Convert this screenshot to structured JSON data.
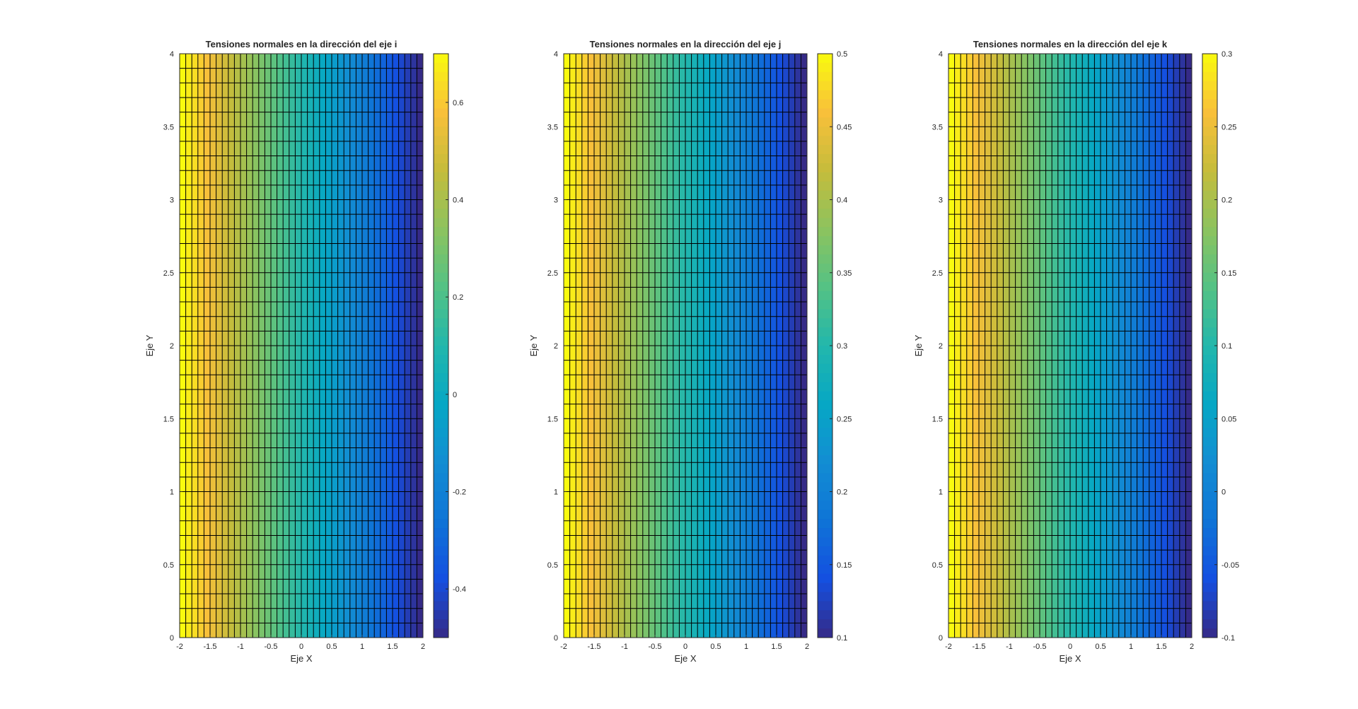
{
  "chart_data": [
    {
      "type": "heatmap",
      "title": "Tensiones normales en la dirección del eje i",
      "xlabel": "Eje X",
      "ylabel": "Eje Y",
      "xlim": [
        -2,
        2
      ],
      "ylim": [
        0,
        4
      ],
      "x_ticks": [
        -2,
        -1.5,
        -1,
        -0.5,
        0,
        0.5,
        1,
        1.5,
        2
      ],
      "x_tick_labels": [
        "-2",
        "-1.5",
        "-1",
        "-0.5",
        "0",
        "0.5",
        "1",
        "1.5",
        "2"
      ],
      "y_ticks": [
        0,
        0.5,
        1,
        1.5,
        2,
        2.5,
        3,
        3.5,
        4
      ],
      "y_tick_labels": [
        "0",
        "0.5",
        "1",
        "1.5",
        "2",
        "2.5",
        "3",
        "3.5",
        "4"
      ],
      "mesh_x_divisions": 40,
      "mesh_y_divisions": 40,
      "value_left": 0.7,
      "value_right": -0.5,
      "clim": [
        -0.5,
        0.7
      ],
      "colorbar_ticks": [
        -0.4,
        -0.2,
        0,
        0.2,
        0.4,
        0.6
      ],
      "colorbar_tick_labels": [
        "-0.4",
        "-0.2",
        "0",
        "0.2",
        "0.4",
        "0.6"
      ],
      "colormap": "parula",
      "edge_color": "#000000"
    },
    {
      "type": "heatmap",
      "title": "Tensiones normales en la dirección del eje j",
      "xlabel": "Eje X",
      "ylabel": "Eje Y",
      "xlim": [
        -2,
        2
      ],
      "ylim": [
        0,
        4
      ],
      "x_ticks": [
        -2,
        -1.5,
        -1,
        -0.5,
        0,
        0.5,
        1,
        1.5,
        2
      ],
      "x_tick_labels": [
        "-2",
        "-1.5",
        "-1",
        "-0.5",
        "0",
        "0.5",
        "1",
        "1.5",
        "2"
      ],
      "y_ticks": [
        0,
        0.5,
        1,
        1.5,
        2,
        2.5,
        3,
        3.5,
        4
      ],
      "y_tick_labels": [
        "0",
        "0.5",
        "1",
        "1.5",
        "2",
        "2.5",
        "3",
        "3.5",
        "4"
      ],
      "mesh_x_divisions": 40,
      "mesh_y_divisions": 40,
      "value_left": 0.5,
      "value_right": 0.1,
      "clim": [
        0.1,
        0.5
      ],
      "colorbar_ticks": [
        0.1,
        0.15,
        0.2,
        0.25,
        0.3,
        0.35,
        0.4,
        0.45,
        0.5
      ],
      "colorbar_tick_labels": [
        "0.1",
        "0.15",
        "0.2",
        "0.25",
        "0.3",
        "0.35",
        "0.4",
        "0.45",
        "0.5"
      ],
      "colormap": "parula",
      "edge_color": "#000000"
    },
    {
      "type": "heatmap",
      "title": "Tensiones normales en la dirección del eje k",
      "xlabel": "Eje X",
      "ylabel": "Eje Y",
      "xlim": [
        -2,
        2
      ],
      "ylim": [
        0,
        4
      ],
      "x_ticks": [
        -2,
        -1.5,
        -1,
        -0.5,
        0,
        0.5,
        1,
        1.5,
        2
      ],
      "x_tick_labels": [
        "-2",
        "-1.5",
        "-1",
        "-0.5",
        "0",
        "0.5",
        "1",
        "1.5",
        "2"
      ],
      "y_ticks": [
        0,
        0.5,
        1,
        1.5,
        2,
        2.5,
        3,
        3.5,
        4
      ],
      "y_tick_labels": [
        "0",
        "0.5",
        "1",
        "1.5",
        "2",
        "2.5",
        "3",
        "3.5",
        "4"
      ],
      "mesh_x_divisions": 40,
      "mesh_y_divisions": 40,
      "value_left": 0.3,
      "value_right": -0.1,
      "clim": [
        -0.1,
        0.3
      ],
      "colorbar_ticks": [
        -0.1,
        -0.05,
        0,
        0.05,
        0.1,
        0.15,
        0.2,
        0.25,
        0.3
      ],
      "colorbar_tick_labels": [
        "-0.1",
        "-0.05",
        "0",
        "0.05",
        "0.1",
        "0.15",
        "0.2",
        "0.25",
        "0.3"
      ],
      "colormap": "parula",
      "edge_color": "#000000"
    }
  ]
}
